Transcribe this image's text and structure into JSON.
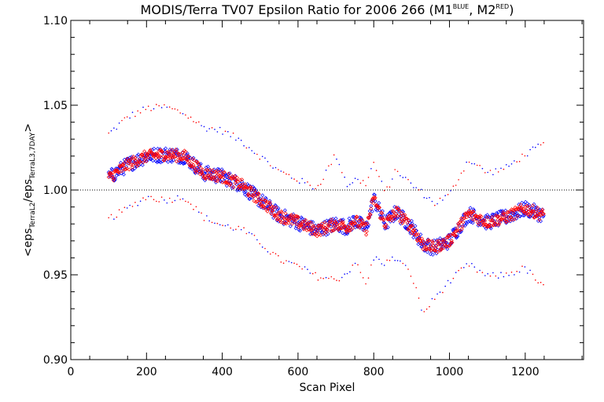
{
  "chart_data": {
    "type": "scatter",
    "title": "MODIS/Terra TV07 Epsilon Ratio for 2006 266 (M1",
    "title_sup1": "BLUE",
    "title_mid": ", M2",
    "title_sup2": "RED",
    "title_end": ")",
    "xlabel": "Scan Pixel",
    "ylabel_prefix": "<eps",
    "ylabel_sub1": "TerraL2",
    "ylabel_mid": "/eps",
    "ylabel_sub2": "TerraL3,7DAY",
    "ylabel_suffix": ">",
    "xlim": [
      0,
      1354
    ],
    "ylim": [
      0.9,
      1.1
    ],
    "x_ticks": [
      0,
      200,
      400,
      600,
      800,
      1000,
      1200
    ],
    "x_tick_labels": [
      "0",
      "200",
      "400",
      "600",
      "800",
      "1000",
      "1200"
    ],
    "y_ticks": [
      0.9,
      0.95,
      1.0,
      1.05,
      1.1
    ],
    "y_tick_labels": [
      "0.90",
      "0.95",
      "1.00",
      "1.05",
      "1.10"
    ],
    "reference_line": 1.0,
    "colors": {
      "M1": "#0000ff",
      "M2": "#ff0000",
      "axes": "#000000"
    },
    "curve": {
      "x": [
        100,
        150,
        200,
        250,
        300,
        350,
        400,
        450,
        500,
        550,
        600,
        650,
        700,
        730,
        750,
        780,
        800,
        830,
        860,
        900,
        930,
        960,
        1000,
        1050,
        1100,
        1150,
        1200,
        1250
      ],
      "mean": [
        1.007,
        1.015,
        1.02,
        1.021,
        1.02,
        1.01,
        1.008,
        1.003,
        0.994,
        0.985,
        0.981,
        0.976,
        0.98,
        0.978,
        0.982,
        0.977,
        0.995,
        0.98,
        0.987,
        0.978,
        0.968,
        0.966,
        0.97,
        0.986,
        0.981,
        0.984,
        0.989,
        0.985
      ],
      "upper": [
        1.033,
        1.043,
        1.048,
        1.049,
        1.045,
        1.037,
        1.035,
        1.029,
        1.02,
        1.011,
        1.006,
        1.001,
        1.021,
        1.003,
        1.006,
        1.004,
        1.016,
        0.998,
        1.012,
        1.003,
        0.998,
        0.992,
        0.997,
        1.018,
        1.01,
        1.013,
        1.021,
        1.027
      ],
      "lower": [
        0.983,
        0.989,
        0.996,
        0.994,
        0.996,
        0.984,
        0.979,
        0.977,
        0.969,
        0.959,
        0.955,
        0.949,
        0.947,
        0.951,
        0.958,
        0.944,
        0.96,
        0.957,
        0.96,
        0.95,
        0.927,
        0.936,
        0.946,
        0.956,
        0.949,
        0.95,
        0.954,
        0.942
      ]
    }
  }
}
